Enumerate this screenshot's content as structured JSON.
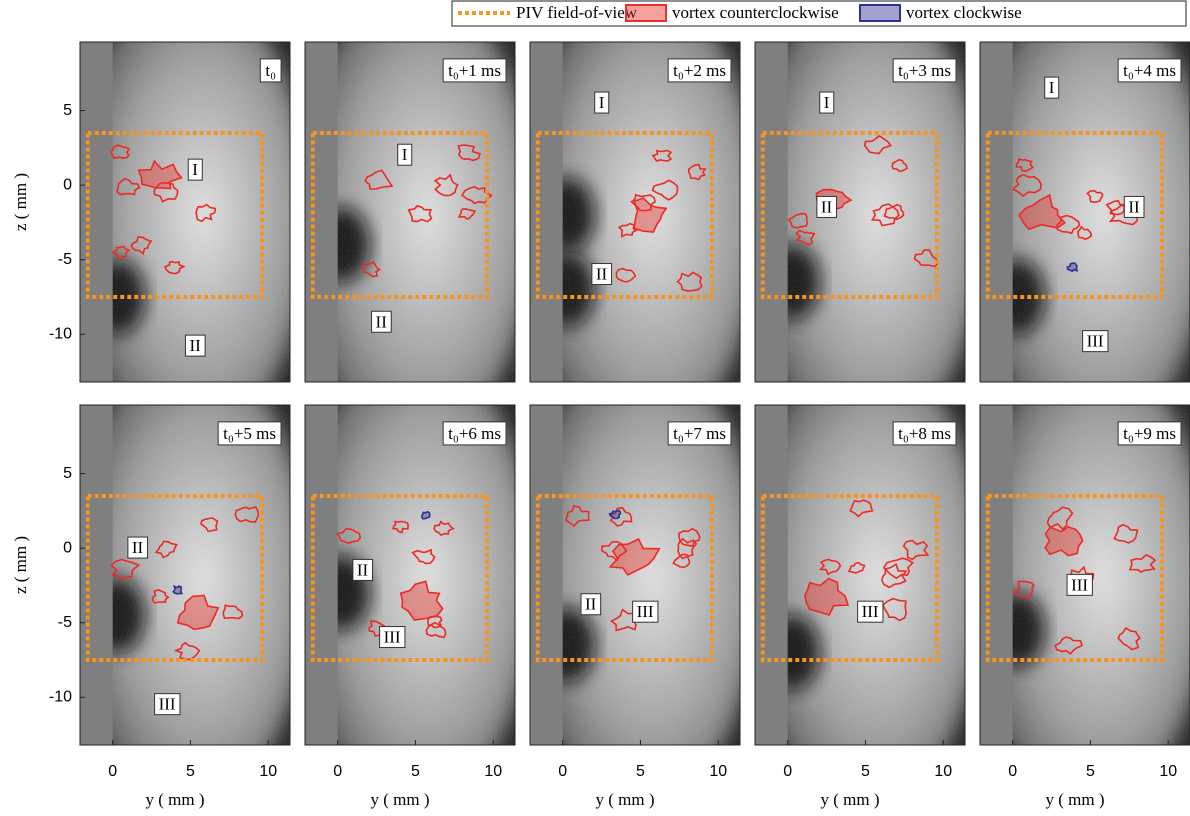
{
  "legend": [
    {
      "label": "PIV field-of-view",
      "color": "#f7941d"
    },
    {
      "label": "vortex counterclockwise",
      "color": "#e8312a"
    },
    {
      "label": "vortex clockwise",
      "color": "#2e3192"
    }
  ],
  "axes": {
    "xlabel": "y ( mm )",
    "ylabel": "z ( mm )",
    "xlim": [
      -2.1,
      11.4
    ],
    "ylim": [
      -13.2,
      9.6
    ],
    "xticks": [
      0,
      5,
      10
    ],
    "yticks": [
      5,
      0,
      -5,
      -10
    ]
  },
  "panels": [
    {
      "time": "t₀",
      "regions": [
        "I",
        "II"
      ]
    },
    {
      "time": "t₀+1 ms",
      "regions": [
        "I",
        "II"
      ]
    },
    {
      "time": "t₀+2 ms",
      "regions": [
        "I",
        "II"
      ]
    },
    {
      "time": "t₀+3 ms",
      "regions": [
        "I",
        "II"
      ]
    },
    {
      "time": "t₀+4 ms",
      "regions": [
        "I",
        "II",
        "III"
      ]
    },
    {
      "time": "t₀+5 ms",
      "regions": [
        "II",
        "III"
      ]
    },
    {
      "time": "t₀+6 ms",
      "regions": [
        "II",
        "III"
      ]
    },
    {
      "time": "t₀+7 ms",
      "regions": [
        "II",
        "III"
      ]
    },
    {
      "time": "t₀+8 ms",
      "regions": [
        "III"
      ]
    },
    {
      "time": "t₀+9 ms",
      "regions": [
        "III"
      ]
    }
  ]
}
